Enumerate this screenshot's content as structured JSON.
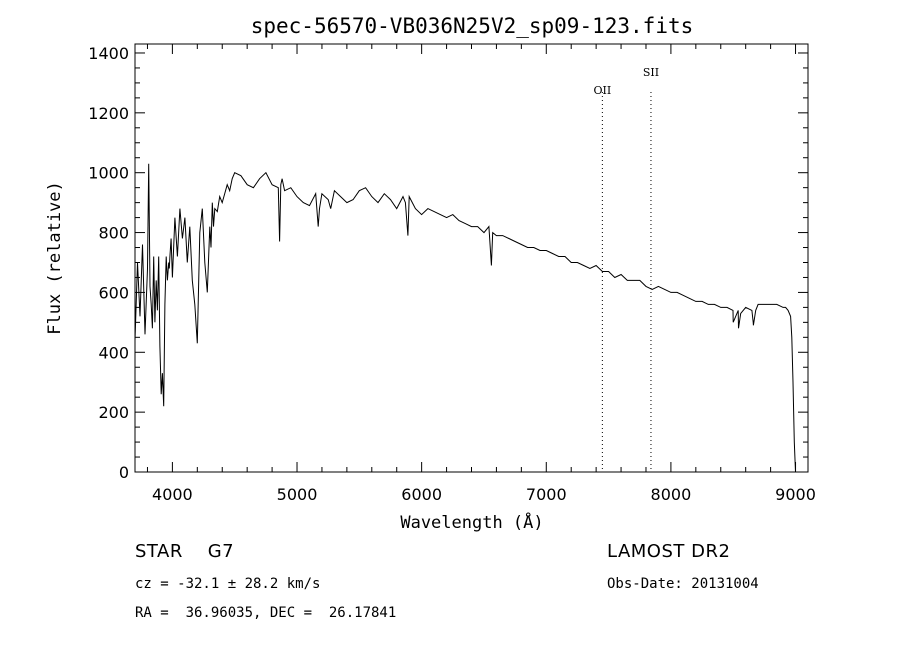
{
  "chart_data": {
    "type": "line",
    "title": "spec-56570-VB036N25V2_sp09-123.fits",
    "xlabel": "Wavelength (Å)",
    "ylabel": "Flux (relative)",
    "xlim": [
      3700,
      9100
    ],
    "ylim": [
      0,
      1430
    ],
    "xticks": [
      4000,
      5000,
      6000,
      7000,
      8000,
      9000
    ],
    "yticks": [
      0,
      200,
      400,
      600,
      800,
      1000,
      1200,
      1400
    ],
    "grid": false,
    "series": [
      {
        "x": [
          3700,
          3720,
          3740,
          3760,
          3780,
          3800,
          3810,
          3820,
          3830,
          3840,
          3850,
          3860,
          3870,
          3880,
          3890,
          3900,
          3910,
          3920,
          3930,
          3940,
          3950,
          3960,
          3970,
          3975,
          3980,
          3990,
          4000,
          4020,
          4040,
          4060,
          4080,
          4100,
          4120,
          4140,
          4160,
          4180,
          4200,
          4220,
          4240,
          4260,
          4280,
          4300,
          4310,
          4320,
          4330,
          4340,
          4360,
          4380,
          4400,
          4420,
          4440,
          4460,
          4480,
          4500,
          4550,
          4600,
          4650,
          4700,
          4750,
          4800,
          4850,
          4860,
          4870,
          4880,
          4900,
          4950,
          5000,
          5050,
          5100,
          5150,
          5170,
          5180,
          5200,
          5250,
          5270,
          5300,
          5350,
          5400,
          5450,
          5500,
          5550,
          5600,
          5650,
          5700,
          5750,
          5800,
          5850,
          5870,
          5890,
          5900,
          5950,
          6000,
          6050,
          6100,
          6150,
          6200,
          6250,
          6300,
          6350,
          6400,
          6450,
          6500,
          6540,
          6560,
          6570,
          6600,
          6650,
          6700,
          6750,
          6800,
          6850,
          6900,
          6950,
          7000,
          7050,
          7100,
          7150,
          7200,
          7250,
          7300,
          7350,
          7400,
          7450,
          7500,
          7550,
          7600,
          7650,
          7700,
          7750,
          7800,
          7850,
          7900,
          7950,
          8000,
          8050,
          8100,
          8150,
          8200,
          8250,
          8300,
          8350,
          8400,
          8450,
          8498,
          8500,
          8540,
          8542,
          8560,
          8600,
          8650,
          8660,
          8662,
          8680,
          8700,
          8750,
          8800,
          8850,
          8900,
          8920,
          8940,
          8960,
          8970,
          8980,
          8990,
          9000
        ],
        "values": [
          440,
          700,
          520,
          760,
          460,
          680,
          1030,
          620,
          560,
          480,
          720,
          500,
          640,
          540,
          720,
          420,
          260,
          330,
          220,
          560,
          720,
          640,
          700,
          680,
          720,
          780,
          650,
          850,
          720,
          880,
          780,
          850,
          700,
          820,
          640,
          560,
          430,
          800,
          880,
          700,
          600,
          820,
          750,
          900,
          820,
          880,
          870,
          920,
          900,
          930,
          960,
          940,
          980,
          1000,
          990,
          960,
          950,
          980,
          1000,
          960,
          950,
          770,
          960,
          980,
          940,
          950,
          920,
          900,
          890,
          930,
          820,
          880,
          930,
          910,
          880,
          940,
          920,
          900,
          910,
          940,
          950,
          920,
          900,
          930,
          910,
          880,
          920,
          900,
          790,
          920,
          880,
          860,
          880,
          870,
          860,
          850,
          860,
          840,
          830,
          820,
          820,
          800,
          820,
          690,
          800,
          790,
          790,
          780,
          770,
          760,
          750,
          750,
          740,
          740,
          730,
          720,
          720,
          700,
          700,
          690,
          680,
          690,
          670,
          670,
          650,
          660,
          640,
          640,
          640,
          620,
          610,
          620,
          610,
          600,
          600,
          590,
          580,
          570,
          570,
          560,
          560,
          550,
          550,
          540,
          500,
          540,
          480,
          530,
          550,
          540,
          500,
          490,
          540,
          560,
          560,
          560,
          560,
          550,
          550,
          540,
          520,
          450,
          300,
          100,
          0
        ]
      }
    ],
    "annotations": [
      {
        "label": "OII",
        "x": 7450,
        "line_style": "dotted"
      },
      {
        "label": "SII",
        "x": 7840,
        "line_style": "dotted"
      }
    ]
  },
  "info": {
    "class": "STAR    G7",
    "survey": "LAMOST DR2",
    "cz": "cz = -32.1 ± 28.2 km/s",
    "obs_date": "Obs-Date: 20131004",
    "coords": "RA =  36.96035, DEC =  26.17841"
  },
  "colors": {
    "line": "#000000",
    "background": "#ffffff"
  }
}
